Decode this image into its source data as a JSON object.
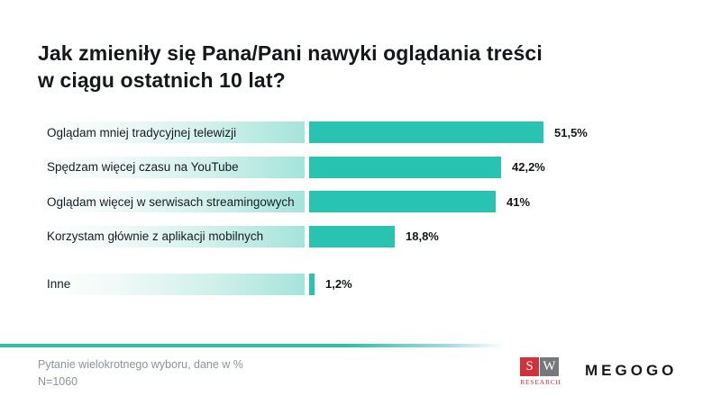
{
  "page": {
    "title_lines": [
      "Jak zmieniły się Pana/Pani nawyki oglądania treści",
      "w ciągu ostatnich 10 lat?"
    ]
  },
  "chart_data": {
    "type": "bar",
    "orientation": "horizontal",
    "title": "Jak zmieniły się Pana/Pani nawyki oglądania treści w ciągu ostatnich 10 lat?",
    "categories": [
      "Oglądam mniej tradycyjnej telewizji",
      "Spędzam więcej czasu na YouTube",
      "Oglądam więcej w serwisach streamingowych",
      "Korzystam głównie z aplikacji mobilnych",
      "Inne"
    ],
    "values": [
      51.5,
      42.2,
      41,
      18.8,
      1.2
    ],
    "value_labels": [
      "51,5%",
      "42,2%",
      "41%",
      "18,8%",
      "1,2%"
    ],
    "unit": "%",
    "axes_visible": false,
    "grid": false,
    "legend": false,
    "bar_color": "#29c3b2",
    "bar_track_gradient": [
      "#ffffff",
      "#a4e4db"
    ]
  },
  "footer": {
    "note_line1": "Pytanie wielokrotnego wyboru, dane w %",
    "note_line2": "N=1060",
    "divider_color": "#2fbfb1"
  },
  "logos": {
    "sw_research": {
      "letter_s": "S",
      "letter_w": "W",
      "caption": "RESEARCH",
      "red": "#d2313c",
      "gray": "#77787b"
    },
    "megogo": {
      "text": "MEGOGO"
    }
  }
}
